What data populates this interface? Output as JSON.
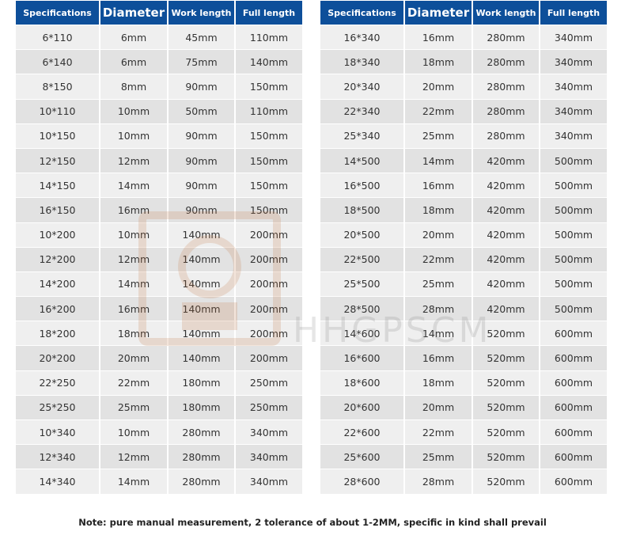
{
  "headers": [
    "Specifications",
    "Diameter",
    "Work length",
    "Full length"
  ],
  "colors": {
    "header_bg": "#0d4f9a",
    "row_light": "#efefef",
    "row_dark": "#e2e2e2"
  },
  "left_rows": [
    [
      "6*110",
      "6mm",
      "45mm",
      "110mm"
    ],
    [
      "6*140",
      "6mm",
      "75mm",
      "140mm"
    ],
    [
      "8*150",
      "8mm",
      "90mm",
      "150mm"
    ],
    [
      "10*110",
      "10mm",
      "50mm",
      "110mm"
    ],
    [
      "10*150",
      "10mm",
      "90mm",
      "150mm"
    ],
    [
      "12*150",
      "12mm",
      "90mm",
      "150mm"
    ],
    [
      "14*150",
      "14mm",
      "90mm",
      "150mm"
    ],
    [
      "16*150",
      "16mm",
      "90mm",
      "150mm"
    ],
    [
      "10*200",
      "10mm",
      "140mm",
      "200mm"
    ],
    [
      "12*200",
      "12mm",
      "140mm",
      "200mm"
    ],
    [
      "14*200",
      "14mm",
      "140mm",
      "200mm"
    ],
    [
      "16*200",
      "16mm",
      "140mm",
      "200mm"
    ],
    [
      "18*200",
      "18mm",
      "140mm",
      "200mm"
    ],
    [
      "20*200",
      "20mm",
      "140mm",
      "200mm"
    ],
    [
      "22*250",
      "22mm",
      "180mm",
      "250mm"
    ],
    [
      "25*250",
      "25mm",
      "180mm",
      "250mm"
    ],
    [
      "10*340",
      "10mm",
      "280mm",
      "340mm"
    ],
    [
      "12*340",
      "12mm",
      "280mm",
      "340mm"
    ],
    [
      "14*340",
      "14mm",
      "280mm",
      "340mm"
    ]
  ],
  "right_rows": [
    [
      "16*340",
      "16mm",
      "280mm",
      "340mm"
    ],
    [
      "18*340",
      "18mm",
      "280mm",
      "340mm"
    ],
    [
      "20*340",
      "20mm",
      "280mm",
      "340mm"
    ],
    [
      "22*340",
      "22mm",
      "280mm",
      "340mm"
    ],
    [
      "25*340",
      "25mm",
      "280mm",
      "340mm"
    ],
    [
      "14*500",
      "14mm",
      "420mm",
      "500mm"
    ],
    [
      "16*500",
      "16mm",
      "420mm",
      "500mm"
    ],
    [
      "18*500",
      "18mm",
      "420mm",
      "500mm"
    ],
    [
      "20*500",
      "20mm",
      "420mm",
      "500mm"
    ],
    [
      "22*500",
      "22mm",
      "420mm",
      "500mm"
    ],
    [
      "25*500",
      "25mm",
      "420mm",
      "500mm"
    ],
    [
      "28*500",
      "28mm",
      "420mm",
      "500mm"
    ],
    [
      "14*600",
      "14mm",
      "520mm",
      "600mm"
    ],
    [
      "16*600",
      "16mm",
      "520mm",
      "600mm"
    ],
    [
      "18*600",
      "18mm",
      "520mm",
      "600mm"
    ],
    [
      "20*600",
      "20mm",
      "520mm",
      "600mm"
    ],
    [
      "22*600",
      "22mm",
      "520mm",
      "600mm"
    ],
    [
      "25*600",
      "25mm",
      "520mm",
      "600mm"
    ],
    [
      "28*600",
      "28mm",
      "520mm",
      "600mm"
    ]
  ],
  "note": "Note: pure manual measurement, 2 tolerance of about 1-2MM, specific in kind shall prevail",
  "watermark": "HHGPSCM"
}
